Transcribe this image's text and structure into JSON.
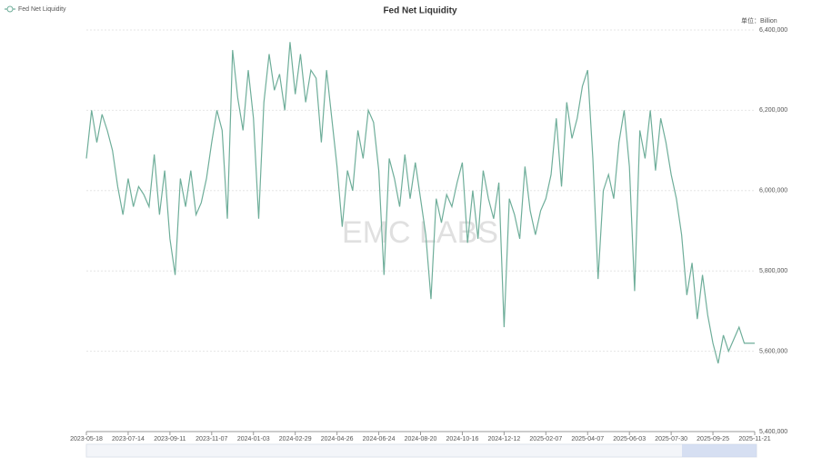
{
  "chart_data": {
    "type": "line",
    "title": "Fed Net Liquidity",
    "unit_label": "单位：Billion",
    "watermark": "EMC LABS",
    "categories": [
      "2023-05-18",
      null,
      null,
      null,
      null,
      null,
      null,
      null,
      "2023-07-14",
      null,
      null,
      null,
      null,
      null,
      null,
      null,
      "2023-09-11",
      null,
      null,
      null,
      null,
      null,
      null,
      null,
      "2023-11-07",
      null,
      null,
      null,
      null,
      null,
      null,
      null,
      "2024-01-03",
      null,
      null,
      null,
      null,
      null,
      null,
      null,
      "2024-02-29",
      null,
      null,
      null,
      null,
      null,
      null,
      null,
      "2024-04-26",
      null,
      null,
      null,
      null,
      null,
      null,
      null,
      "2024-06-24",
      null,
      null,
      null,
      null,
      null,
      null,
      null,
      "2024-08-20",
      null,
      null,
      null,
      null,
      null,
      null,
      null,
      "2024-10-16",
      null,
      null,
      null,
      null,
      null,
      null,
      null,
      "2024-12-12",
      null,
      null,
      null,
      null,
      null,
      null,
      null,
      "2025-02-07",
      null,
      null,
      null,
      null,
      null,
      null,
      null,
      "2025-04-07",
      null,
      null,
      null,
      null,
      null,
      null,
      null,
      "2025-06-03",
      null,
      null,
      null,
      null,
      null,
      null,
      null,
      "2025-07-30",
      null,
      null,
      null,
      null,
      null,
      null,
      null,
      "2025-09-25",
      null,
      null,
      null,
      null,
      null,
      null,
      null,
      "2025-11-21"
    ],
    "series": [
      {
        "name": "Fed Net Liquidity",
        "color": "#6fae9a",
        "values": [
          6080000,
          6200000,
          6120000,
          6190000,
          6150000,
          6100000,
          6010000,
          5940000,
          6030000,
          5960000,
          6010000,
          5990000,
          5960000,
          6090000,
          5940000,
          6050000,
          5880000,
          5790000,
          6030000,
          5960000,
          6050000,
          5940000,
          5970000,
          6030000,
          6120000,
          6200000,
          6150000,
          5930000,
          6350000,
          6230000,
          6150000,
          6300000,
          6180000,
          5930000,
          6220000,
          6340000,
          6250000,
          6290000,
          6200000,
          6370000,
          6240000,
          6340000,
          6220000,
          6300000,
          6280000,
          6120000,
          6300000,
          6180000,
          6060000,
          5910000,
          6050000,
          6000000,
          6150000,
          6080000,
          6200000,
          6170000,
          6050000,
          5790000,
          6080000,
          6030000,
          5960000,
          6090000,
          5980000,
          6070000,
          5980000,
          5890000,
          5730000,
          5980000,
          5920000,
          5990000,
          5960000,
          6020000,
          6070000,
          5870000,
          6000000,
          5880000,
          6050000,
          5980000,
          5930000,
          6020000,
          5660000,
          5980000,
          5940000,
          5880000,
          6060000,
          5950000,
          5890000,
          5950000,
          5980000,
          6040000,
          6180000,
          6010000,
          6220000,
          6130000,
          6180000,
          6260000,
          6300000,
          6080000,
          5780000,
          6000000,
          6040000,
          5980000,
          6120000,
          6200000,
          6060000,
          5750000,
          6150000,
          6080000,
          6200000,
          6050000,
          6180000,
          6120000,
          6040000,
          5980000,
          5890000,
          5740000,
          5820000,
          5680000,
          5790000,
          5690000,
          5620000,
          5570000,
          5640000,
          5600000,
          5630000,
          5660000,
          5620000,
          5620000,
          5620000
        ]
      }
    ],
    "ylim": [
      5400000,
      6400000
    ],
    "yticks": [
      {
        "value": 5400000,
        "label": "5,400,000"
      },
      {
        "value": 5600000,
        "label": "5,600,000"
      },
      {
        "value": 5800000,
        "label": "5,800,000"
      },
      {
        "value": 6000000,
        "label": "6,000,000"
      },
      {
        "value": 6200000,
        "label": "6,200,000"
      },
      {
        "value": 6400000,
        "label": "6,400,000"
      }
    ],
    "grid": true
  }
}
